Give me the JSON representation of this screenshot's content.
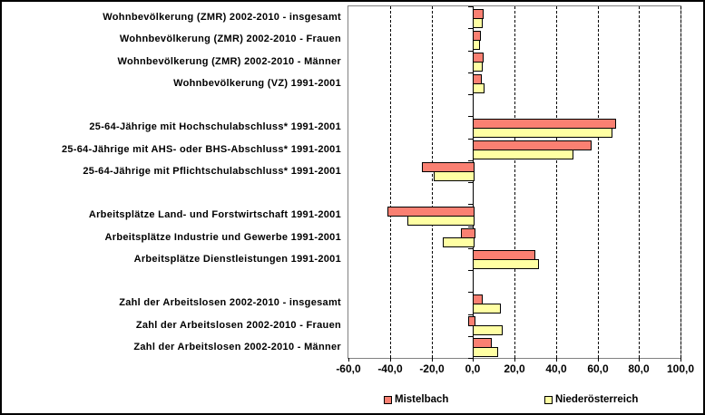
{
  "chart_data": {
    "type": "bar",
    "orientation": "horizontal",
    "title": "",
    "xlabel": "",
    "ylabel": "",
    "xlim": [
      -60,
      100
    ],
    "x_tick_step": 20,
    "x_tick_labels": [
      "-60,0",
      "-40,0",
      "-20,0",
      "0,0",
      "20,0",
      "40,0",
      "60,0",
      "80,0",
      "100,0"
    ],
    "grid": "dashed-vertical-major",
    "legend_position": "bottom",
    "categories": [
      "Wohnbevölkerung (ZMR) 2002-2010 - insgesamt",
      "Wohnbevölkerung (ZMR) 2002-2010 - Frauen",
      "Wohnbevölkerung (ZMR) 2002-2010 - Männer",
      "Wohnbevölkerung (VZ) 1991-2001",
      "",
      "25-64-Jährige mit Hochschulabschluss* 1991-2001",
      "25-64-Jährige mit AHS- oder BHS-Abschluss* 1991-2001",
      "25-64-Jährige mit Pflichtschulabschluss* 1991-2001",
      "",
      "Arbeitsplätze Land- und Forstwirtschaft 1991-2001",
      "Arbeitsplätze Industrie und Gewerbe 1991-2001",
      "Arbeitsplätze Dienstleistungen 1991-2001",
      "",
      "Zahl der Arbeitslosen 2002-2010 - insgesamt",
      "Zahl der Arbeitslosen 2002-2010 - Frauen",
      "Zahl der Arbeitslosen 2002-2010 - Männer"
    ],
    "series": [
      {
        "name": "Mistelbach",
        "color": "#FA8072",
        "values": [
          4.3,
          3.1,
          4.4,
          3.5,
          null,
          68.0,
          56.5,
          -24.5,
          null,
          -41.0,
          -6.0,
          29.5,
          null,
          4.0,
          -2.5,
          8.5
        ]
      },
      {
        "name": "Niederösterreich",
        "color": "#FFFFA3",
        "values": [
          3.9,
          2.7,
          4.0,
          4.8,
          null,
          66.5,
          47.5,
          -19.0,
          null,
          -31.5,
          -14.5,
          31.0,
          null,
          12.5,
          13.5,
          11.5
        ]
      }
    ],
    "colors": {
      "gridline": "#000000",
      "plot_border": "#808080",
      "bar_border": "#000000",
      "background": "#FFFFFF"
    }
  }
}
